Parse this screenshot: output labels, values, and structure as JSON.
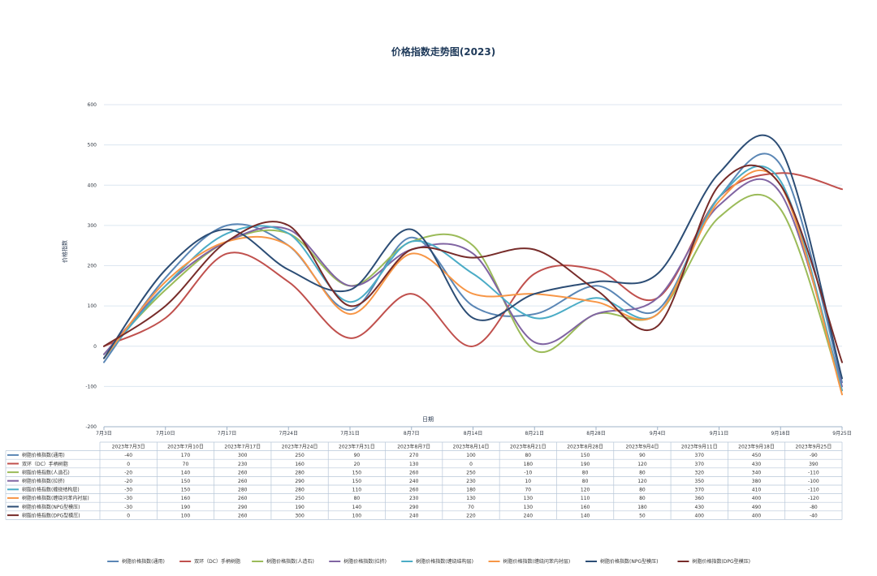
{
  "chart_data": {
    "type": "line",
    "title": "价格指数走势图(2023)",
    "xlabel": "日期",
    "ylabel": "价格指数",
    "ylim": [
      -200,
      600
    ],
    "yticks": [
      -200,
      -100,
      0,
      100,
      200,
      300,
      400,
      500,
      600
    ],
    "grid": true,
    "legend_position": "bottom",
    "smooth": true,
    "axis_categories": [
      "7月3日",
      "7月10日",
      "7月17日",
      "7月24日",
      "7月31日",
      "8月7日",
      "8月14日",
      "8月21日",
      "8月28日",
      "9月4日",
      "9月11日",
      "9月18日",
      "9月25日"
    ],
    "categories": [
      "2023年7月3日",
      "2023年7月10日",
      "2023年7月17日",
      "2023年7月24日",
      "2023年7月31日",
      "2023年8月7日",
      "2023年8月14日",
      "2023年8月21日",
      "2023年8月28日",
      "2023年9月4日",
      "2023年9月11日",
      "2023年9月18日",
      "2023年9月25日"
    ],
    "series": [
      {
        "name": "树脂价格指数(通用)",
        "color": "#5a86b5",
        "values": [
          -40,
          170,
          300,
          250,
          90,
          270,
          100,
          80,
          150,
          90,
          370,
          450,
          -90
        ]
      },
      {
        "name": "双环（DC）手柄树脂",
        "color": "#c0504d",
        "values": [
          0,
          70,
          230,
          160,
          20,
          130,
          0,
          180,
          190,
          120,
          370,
          430,
          390
        ]
      },
      {
        "name": "树脂价格指数(人造石)",
        "color": "#9bbb59",
        "values": [
          -20,
          140,
          260,
          280,
          150,
          260,
          250,
          -10,
          80,
          80,
          320,
          340,
          -110
        ]
      },
      {
        "name": "树脂价格指数(拉挤)",
        "color": "#8064a2",
        "values": [
          -20,
          150,
          260,
          290,
          150,
          240,
          230,
          10,
          80,
          120,
          350,
          380,
          -100
        ]
      },
      {
        "name": "树脂价格指数(缠绕结构层)",
        "color": "#4bacc6",
        "values": [
          -30,
          150,
          280,
          280,
          110,
          260,
          180,
          70,
          120,
          80,
          370,
          410,
          -110
        ]
      },
      {
        "name": "树脂价格指数(缠绕问苯内衬层)",
        "color": "#f79646",
        "values": [
          -30,
          160,
          260,
          250,
          80,
          230,
          130,
          130,
          110,
          80,
          360,
          400,
          -120
        ]
      },
      {
        "name": "树脂价格指数(NPG型模压)",
        "color": "#2c4d75",
        "values": [
          -30,
          190,
          290,
          190,
          140,
          290,
          70,
          130,
          160,
          180,
          430,
          490,
          -80
        ]
      },
      {
        "name": "树脂价格指数(DPG型模压)",
        "color": "#772c2a",
        "values": [
          0,
          100,
          260,
          300,
          100,
          240,
          220,
          240,
          140,
          50,
          400,
          400,
          -40
        ]
      }
    ]
  }
}
